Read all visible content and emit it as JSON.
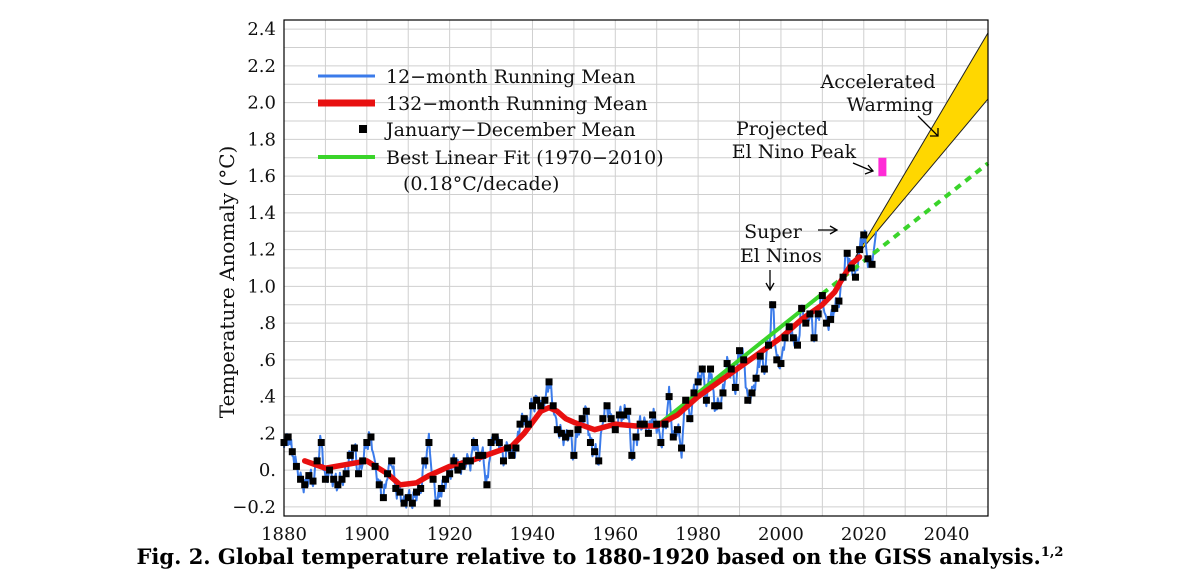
{
  "chart_data": {
    "type": "line",
    "ylabel": "Temperature Anomaly (°C)",
    "xlim": [
      1880,
      2050
    ],
    "ylim": [
      -0.25,
      2.45
    ],
    "x_ticks": [
      1880,
      1900,
      1920,
      1940,
      1960,
      1980,
      2000,
      2020,
      2040
    ],
    "y_ticks": [
      {
        "value": -0.2,
        "label": "−0.2"
      },
      {
        "value": 0.0,
        "label": "0."
      },
      {
        "value": 0.2,
        "label": ".2"
      },
      {
        "value": 0.4,
        "label": ".4"
      },
      {
        "value": 0.6,
        "label": ".6"
      },
      {
        "value": 0.8,
        "label": ".8"
      },
      {
        "value": 1.0,
        "label": "1.0"
      },
      {
        "value": 1.2,
        "label": "1.2"
      },
      {
        "value": 1.4,
        "label": "1.4"
      },
      {
        "value": 1.6,
        "label": "1.6"
      },
      {
        "value": 1.8,
        "label": "1.8"
      },
      {
        "value": 2.0,
        "label": "2.0"
      },
      {
        "value": 2.2,
        "label": "2.2"
      },
      {
        "value": 2.4,
        "label": "2.4"
      }
    ],
    "grid": true,
    "legend": [
      {
        "label": "12−month Running Mean",
        "color": "#3b7bea",
        "style": "line"
      },
      {
        "label": "132−month Running Mean",
        "color": "#e81010",
        "style": "thick-line"
      },
      {
        "label": "January−December Mean",
        "color": "#000000",
        "style": "square"
      },
      {
        "label": "Best Linear Fit (1970−2010)",
        "color": "#3ad42a",
        "style": "line"
      }
    ],
    "legend_note": "(0.18°C/decade)",
    "colors": {
      "running12": "#3b7bea",
      "running132": "#e81010",
      "annual": "#000000",
      "fit": "#3ad42a",
      "accel": "#ffd700",
      "projected": "#ff2bd6"
    },
    "series": [
      {
        "name": "January−December Mean",
        "x": [
          1880,
          1881,
          1882,
          1883,
          1884,
          1885,
          1886,
          1887,
          1888,
          1889,
          1890,
          1891,
          1892,
          1893,
          1894,
          1895,
          1896,
          1897,
          1898,
          1899,
          1900,
          1901,
          1902,
          1903,
          1904,
          1905,
          1906,
          1907,
          1908,
          1909,
          1910,
          1911,
          1912,
          1913,
          1914,
          1915,
          1916,
          1917,
          1918,
          1919,
          1920,
          1921,
          1922,
          1923,
          1924,
          1925,
          1926,
          1927,
          1928,
          1929,
          1930,
          1931,
          1932,
          1933,
          1934,
          1935,
          1936,
          1937,
          1938,
          1939,
          1940,
          1941,
          1942,
          1943,
          1944,
          1945,
          1946,
          1947,
          1948,
          1949,
          1950,
          1951,
          1952,
          1953,
          1954,
          1955,
          1956,
          1957,
          1958,
          1959,
          1960,
          1961,
          1962,
          1963,
          1964,
          1965,
          1966,
          1967,
          1968,
          1969,
          1970,
          1971,
          1972,
          1973,
          1974,
          1975,
          1976,
          1977,
          1978,
          1979,
          1980,
          1981,
          1982,
          1983,
          1984,
          1985,
          1986,
          1987,
          1988,
          1989,
          1990,
          1991,
          1992,
          1993,
          1994,
          1995,
          1996,
          1997,
          1998,
          1999,
          2000,
          2001,
          2002,
          2003,
          2004,
          2005,
          2006,
          2007,
          2008,
          2009,
          2010,
          2011,
          2012,
          2013,
          2014,
          2015,
          2016,
          2017,
          2018,
          2019,
          2020,
          2021,
          2022
        ],
        "y": [
          0.15,
          0.18,
          0.1,
          0.02,
          -0.05,
          -0.08,
          -0.03,
          -0.06,
          0.05,
          0.15,
          -0.05,
          0.0,
          -0.05,
          -0.08,
          -0.05,
          -0.02,
          0.08,
          0.12,
          -0.02,
          0.05,
          0.15,
          0.18,
          0.02,
          -0.08,
          -0.15,
          -0.02,
          0.05,
          -0.1,
          -0.12,
          -0.18,
          -0.15,
          -0.18,
          -0.12,
          -0.1,
          0.05,
          0.15,
          -0.05,
          -0.18,
          -0.1,
          -0.05,
          -0.02,
          0.05,
          0.0,
          0.02,
          0.05,
          0.05,
          0.15,
          0.08,
          0.08,
          -0.08,
          0.15,
          0.18,
          0.15,
          0.05,
          0.12,
          0.08,
          0.12,
          0.25,
          0.28,
          0.25,
          0.35,
          0.38,
          0.35,
          0.38,
          0.48,
          0.35,
          0.22,
          0.2,
          0.18,
          0.2,
          0.08,
          0.22,
          0.28,
          0.32,
          0.15,
          0.1,
          0.05,
          0.28,
          0.35,
          0.28,
          0.22,
          0.3,
          0.3,
          0.32,
          0.08,
          0.18,
          0.25,
          0.25,
          0.2,
          0.3,
          0.25,
          0.15,
          0.25,
          0.4,
          0.18,
          0.22,
          0.12,
          0.38,
          0.28,
          0.42,
          0.48,
          0.55,
          0.38,
          0.55,
          0.35,
          0.35,
          0.42,
          0.58,
          0.55,
          0.45,
          0.65,
          0.6,
          0.38,
          0.42,
          0.5,
          0.62,
          0.55,
          0.68,
          0.9,
          0.6,
          0.58,
          0.72,
          0.78,
          0.72,
          0.68,
          0.88,
          0.8,
          0.85,
          0.72,
          0.85,
          0.95,
          0.8,
          0.82,
          0.88,
          0.92,
          1.05,
          1.18,
          1.1,
          1.05,
          1.2,
          1.28,
          1.15,
          1.12
        ]
      },
      {
        "name": "132−month Running Mean",
        "x": [
          1885,
          1890,
          1895,
          1900,
          1905,
          1908,
          1912,
          1915,
          1920,
          1925,
          1930,
          1935,
          1938,
          1940,
          1942,
          1944,
          1946,
          1948,
          1950,
          1955,
          1960,
          1965,
          1970,
          1975,
          1980,
          1985,
          1990,
          1995,
          2000,
          2005,
          2010,
          2013,
          2015,
          2017,
          2019
        ],
        "y": [
          0.05,
          0.01,
          0.03,
          0.05,
          -0.02,
          -0.08,
          -0.07,
          -0.03,
          0.02,
          0.05,
          0.09,
          0.13,
          0.2,
          0.26,
          0.32,
          0.34,
          0.32,
          0.28,
          0.26,
          0.22,
          0.25,
          0.24,
          0.24,
          0.3,
          0.4,
          0.48,
          0.56,
          0.64,
          0.72,
          0.82,
          0.9,
          0.97,
          1.05,
          1.12,
          1.16
        ]
      },
      {
        "name": "Best Linear Fit (1970−2010)",
        "x": [
          1970,
          2010
        ],
        "y": [
          0.24,
          0.96
        ]
      },
      {
        "name": "Best Linear Fit extrapolation",
        "x": [
          2010,
          2050
        ],
        "y": [
          0.96,
          1.67
        ]
      }
    ],
    "accelerated_warming": {
      "start_year": 2018,
      "start_value": 1.16,
      "end_year": 2050,
      "upper": 2.38,
      "lower": 2.02
    },
    "projected_el_nino": {
      "year": 2024.5,
      "low": 1.6,
      "high": 1.7
    },
    "annotations": {
      "accelerated_1": "Accelerated",
      "accelerated_2": "Warming",
      "projected_1": "Projected",
      "projected_2": "El Nino Peak",
      "super_1": "Super",
      "super_2": "El Ninos"
    }
  },
  "caption": {
    "text": "Fig. 2. Global temperature relative to 1880-1920 based on the GISS analysis.",
    "superscript": "1,2"
  }
}
